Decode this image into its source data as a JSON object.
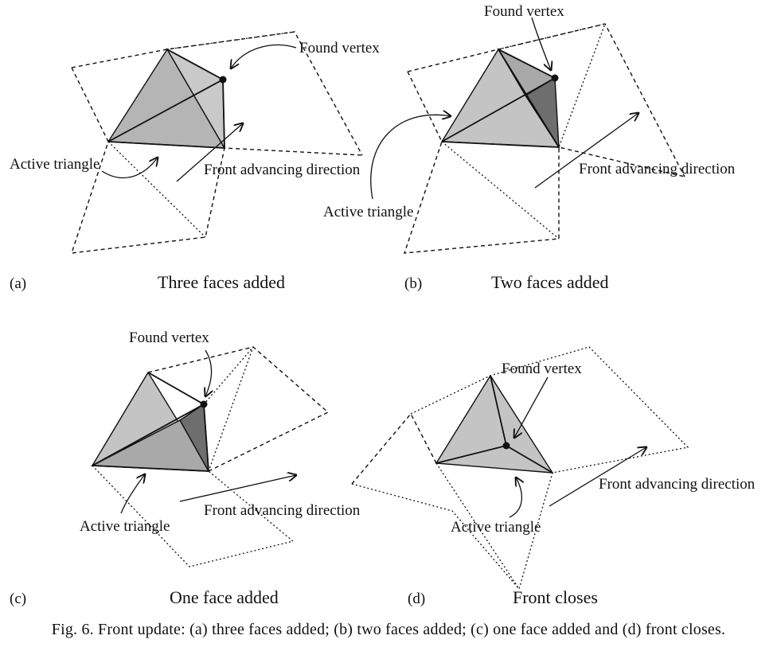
{
  "panels": [
    {
      "letter": "(a)",
      "subtitle": "Three faces added",
      "found_vertex": "Found vertex",
      "active_triangle": "Active triangle",
      "front_direction": "Front advancing direction"
    },
    {
      "letter": "(b)",
      "subtitle": "Two faces added",
      "found_vertex": "Found vertex",
      "active_triangle": "Active triangle",
      "front_direction": "Front advancing direction"
    },
    {
      "letter": "(c)",
      "subtitle": "One face added",
      "found_vertex": "Found vertex",
      "active_triangle": "Active triangle",
      "front_direction": "Front advancing direction"
    },
    {
      "letter": "(d)",
      "subtitle": "Front closes",
      "found_vertex": "Found vertex",
      "active_triangle": "Active triangle",
      "front_direction": "Front advancing direction"
    }
  ],
  "caption": "Fig. 6.  Front update: (a) three faces added; (b) two faces added; (c) one face added and (d) front closes.",
  "colors": {
    "face_light": "#c4c4c4",
    "face_mid": "#a9a9a9",
    "face_dark": "#6e6e6e",
    "line": "#111111"
  }
}
